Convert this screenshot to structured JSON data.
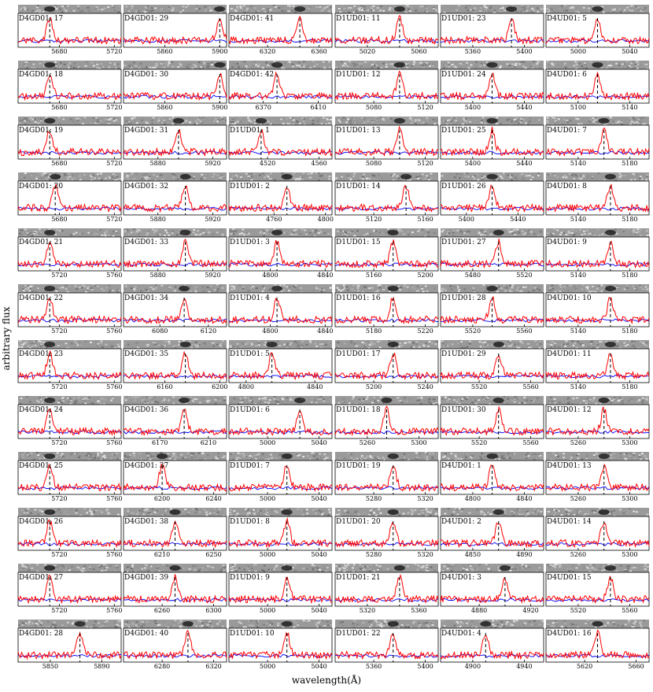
{
  "figure": {
    "ylabel": "arbitrary flux",
    "xlabel": "wavelength(Å)",
    "colors": {
      "spectrum": "#ff0000",
      "noise": "#0000ff",
      "marker": "#000000"
    }
  },
  "chart_data": {
    "type": "line",
    "columns": [
      [
        {
          "label": "D4GD01: 17",
          "ticks": [
            5680,
            5720
          ],
          "range": [
            5650,
            5725
          ],
          "center": 5673
        },
        {
          "label": "D4GD01: 18",
          "ticks": [
            5680,
            5720
          ],
          "range": [
            5650,
            5725
          ],
          "center": 5673
        },
        {
          "label": "D4GD01: 19",
          "ticks": [
            5680,
            5720
          ],
          "range": [
            5650,
            5725
          ],
          "center": 5673
        },
        {
          "label": "D4GD01: 20",
          "ticks": [
            5680,
            5720
          ],
          "range": [
            5650,
            5725
          ],
          "center": 5677
        },
        {
          "label": "D4GD01: 21",
          "ticks": [
            5720,
            5760
          ],
          "range": [
            5690,
            5765
          ],
          "center": 5713
        },
        {
          "label": "D4GD01: 22",
          "ticks": [
            5720,
            5760
          ],
          "range": [
            5690,
            5765
          ],
          "center": 5713
        },
        {
          "label": "D4GD01: 23",
          "ticks": [
            5720,
            5760
          ],
          "range": [
            5690,
            5765
          ],
          "center": 5713
        },
        {
          "label": "D4GD01: 24",
          "ticks": [
            5720,
            5760
          ],
          "range": [
            5690,
            5765
          ],
          "center": 5713
        },
        {
          "label": "D4GD01: 25",
          "ticks": [
            5720,
            5760
          ],
          "range": [
            5690,
            5765
          ],
          "center": 5713
        },
        {
          "label": "D4GD01: 26",
          "ticks": [
            5720,
            5760
          ],
          "range": [
            5690,
            5765
          ],
          "center": 5713
        },
        {
          "label": "D4GD01: 27",
          "ticks": [
            5720,
            5760
          ],
          "range": [
            5690,
            5765
          ],
          "center": 5713
        },
        {
          "label": "D4GD01: 28",
          "ticks": [
            5850,
            5890
          ],
          "range": [
            5825,
            5905
          ],
          "center": 5873
        }
      ],
      [
        {
          "label": "D4GD01: 29",
          "ticks": [
            5860,
            5900
          ],
          "range": [
            5830,
            5905
          ],
          "center": 5900
        },
        {
          "label": "D4GD01: 30",
          "ticks": [
            5860,
            5900
          ],
          "range": [
            5830,
            5905
          ],
          "center": 5900
        },
        {
          "label": "D4GD01: 31",
          "ticks": [
            5880,
            5920
          ],
          "range": [
            5855,
            5930
          ],
          "center": 5895
        },
        {
          "label": "D4GD01: 32",
          "ticks": [
            5880,
            5920
          ],
          "range": [
            5855,
            5930
          ],
          "center": 5900
        },
        {
          "label": "D4GD01: 33",
          "ticks": [
            5880,
            5920
          ],
          "range": [
            5855,
            5930
          ],
          "center": 5900
        },
        {
          "label": "D4GD01: 34",
          "ticks": [
            6080,
            6120
          ],
          "range": [
            6050,
            6135
          ],
          "center": 6100
        },
        {
          "label": "D4GD01: 35",
          "ticks": [
            6160,
            6200
          ],
          "range": [
            6130,
            6205
          ],
          "center": 6175
        },
        {
          "label": "D4GD01: 36",
          "ticks": [
            6170,
            6210
          ],
          "range": [
            6140,
            6225
          ],
          "center": 6190
        },
        {
          "label": "D4GD01: 37",
          "ticks": [
            6200,
            6240
          ],
          "range": [
            6170,
            6250
          ],
          "center": 6200
        },
        {
          "label": "D4GD01: 38",
          "ticks": [
            6210,
            6250
          ],
          "range": [
            6180,
            6260
          ],
          "center": 6220
        },
        {
          "label": "D4GD01: 39",
          "ticks": [
            6260,
            6300
          ],
          "range": [
            6230,
            6310
          ],
          "center": 6270
        },
        {
          "label": "D4GD01: 40",
          "ticks": [
            6280,
            6320
          ],
          "range": [
            6250,
            6330
          ],
          "center": 6300
        }
      ],
      [
        {
          "label": "D4GD01: 41",
          "ticks": [
            6320,
            6360
          ],
          "range": [
            6290,
            6370
          ],
          "center": 6345
        },
        {
          "label": "D4GD01: 42",
          "ticks": [
            6370,
            6410
          ],
          "range": [
            6345,
            6420
          ],
          "center": 6380
        },
        {
          "label": "D1UD01: 1",
          "ticks": [
            4520,
            4560
          ],
          "range": [
            4490,
            4570
          ],
          "center": 4515
        },
        {
          "label": "D1UD01: 2",
          "ticks": [
            4760,
            4800
          ],
          "range": [
            4725,
            4805
          ],
          "center": 4770
        },
        {
          "label": "D1UD01: 3",
          "ticks": [
            4800,
            4840
          ],
          "range": [
            4770,
            4845
          ],
          "center": 4805
        },
        {
          "label": "D1UD01: 4",
          "ticks": [
            4800,
            4840
          ],
          "range": [
            4770,
            4845
          ],
          "center": 4805
        },
        {
          "label": "D1UD01: 5",
          "ticks": [
            4800,
            4840
          ],
          "range": [
            4790,
            4850
          ],
          "center": 4815
        },
        {
          "label": "D1UD01: 6",
          "ticks": [
            5000,
            5040
          ],
          "range": [
            4970,
            5050
          ],
          "center": 5025
        },
        {
          "label": "D1UD01: 7",
          "ticks": [
            5000,
            5040
          ],
          "range": [
            4970,
            5050
          ],
          "center": 5015
        },
        {
          "label": "D1UD01: 8",
          "ticks": [
            5000,
            5040
          ],
          "range": [
            4970,
            5050
          ],
          "center": 5015
        },
        {
          "label": "D1UD01: 9",
          "ticks": [
            5000,
            5040
          ],
          "range": [
            4970,
            5050
          ],
          "center": 5015
        },
        {
          "label": "D1UD01: 10",
          "ticks": [
            5000,
            5040
          ],
          "range": [
            4970,
            5050
          ],
          "center": 5015
        }
      ],
      [
        {
          "label": "D1UD01: 11",
          "ticks": [
            5020,
            5060
          ],
          "range": [
            4995,
            5075
          ],
          "center": 5045
        },
        {
          "label": "D1UD01: 12",
          "ticks": [
            5080,
            5120
          ],
          "range": [
            5050,
            5130
          ],
          "center": 5100
        },
        {
          "label": "D1UD01: 13",
          "ticks": [
            5080,
            5120
          ],
          "range": [
            5050,
            5130
          ],
          "center": 5100
        },
        {
          "label": "D1UD01: 14",
          "ticks": [
            5120,
            5160
          ],
          "range": [
            5090,
            5170
          ],
          "center": 5145
        },
        {
          "label": "D1UD01: 15",
          "ticks": [
            5160,
            5200
          ],
          "range": [
            5130,
            5210
          ],
          "center": 5175
        },
        {
          "label": "D1UD01: 16",
          "ticks": [
            5180,
            5220
          ],
          "range": [
            5150,
            5230
          ],
          "center": 5195
        },
        {
          "label": "D1UD01: 17",
          "ticks": [
            5200,
            5240
          ],
          "range": [
            5170,
            5250
          ],
          "center": 5215
        },
        {
          "label": "D1UD01: 18",
          "ticks": [
            5260,
            5300
          ],
          "range": [
            5235,
            5315
          ],
          "center": 5275
        },
        {
          "label": "D1UD01: 19",
          "ticks": [
            5280,
            5320
          ],
          "range": [
            5250,
            5330
          ],
          "center": 5295
        },
        {
          "label": "D1UD01: 20",
          "ticks": [
            5280,
            5320
          ],
          "range": [
            5250,
            5330
          ],
          "center": 5295
        },
        {
          "label": "D1UD01: 21",
          "ticks": [
            5320,
            5360
          ],
          "range": [
            5295,
            5375
          ],
          "center": 5345
        },
        {
          "label": "D1UD01: 22",
          "ticks": [
            5360,
            5400
          ],
          "range": [
            5330,
            5410
          ],
          "center": 5375
        }
      ],
      [
        {
          "label": "D1UD01: 23",
          "ticks": [
            5360,
            5400
          ],
          "range": [
            5335,
            5415
          ],
          "center": 5390
        },
        {
          "label": "D1UD01: 24",
          "ticks": [
            5400,
            5440
          ],
          "range": [
            5375,
            5455
          ],
          "center": 5415
        },
        {
          "label": "D1UD01: 25",
          "ticks": [
            5400,
            5440
          ],
          "range": [
            5375,
            5455
          ],
          "center": 5415
        },
        {
          "label": "D1UD01: 26",
          "ticks": [
            5400,
            5440
          ],
          "range": [
            5380,
            5460
          ],
          "center": 5420
        },
        {
          "label": "D1UD01: 27",
          "ticks": [
            5480,
            5520
          ],
          "range": [
            5455,
            5535
          ],
          "center": 5500
        },
        {
          "label": "D1UD01: 28",
          "ticks": [
            5520,
            5560
          ],
          "range": [
            5495,
            5575
          ],
          "center": 5535
        },
        {
          "label": "D1UD01: 29",
          "ticks": [
            5520,
            5560
          ],
          "range": [
            5490,
            5570
          ],
          "center": 5535
        },
        {
          "label": "D1UD01: 30",
          "ticks": [
            5520,
            5560
          ],
          "range": [
            5490,
            5570
          ],
          "center": 5535
        },
        {
          "label": "D4UD01: 1",
          "ticks": [
            4800,
            4840
          ],
          "range": [
            4775,
            4855
          ],
          "center": 4815
        },
        {
          "label": "D4UD01: 2",
          "ticks": [
            4850,
            4890
          ],
          "range": [
            4825,
            4905
          ],
          "center": 4870
        },
        {
          "label": "D4UD01: 3",
          "ticks": [
            4880,
            4920
          ],
          "range": [
            4850,
            4930
          ],
          "center": 4900
        },
        {
          "label": "D4UD01: 4",
          "ticks": [
            4900,
            4940
          ],
          "range": [
            4875,
            4955
          ],
          "center": 4910
        }
      ],
      [
        {
          "label": "D4UD01: 5",
          "ticks": [
            5000,
            5040
          ],
          "range": [
            4975,
            5055
          ],
          "center": 5015
        },
        {
          "label": "D4UD01: 6",
          "ticks": [
            5100,
            5140
          ],
          "range": [
            5075,
            5155
          ],
          "center": 5115
        },
        {
          "label": "D4UD01: 7",
          "ticks": [
            5140,
            5180
          ],
          "range": [
            5115,
            5195
          ],
          "center": 5160
        },
        {
          "label": "D4UD01: 8",
          "ticks": [
            5140,
            5180
          ],
          "range": [
            5115,
            5195
          ],
          "center": 5165
        },
        {
          "label": "D4UD01: 9",
          "ticks": [
            5140,
            5180
          ],
          "range": [
            5115,
            5195
          ],
          "center": 5165
        },
        {
          "label": "D4UD01: 10",
          "ticks": [
            5140,
            5180
          ],
          "range": [
            5115,
            5195
          ],
          "center": 5165
        },
        {
          "label": "D4UD01: 11",
          "ticks": [
            5140,
            5180
          ],
          "range": [
            5115,
            5195
          ],
          "center": 5165
        },
        {
          "label": "D4UD01: 12",
          "ticks": [
            5260,
            5300
          ],
          "range": [
            5235,
            5315
          ],
          "center": 5280
        },
        {
          "label": "D4UD01: 13",
          "ticks": [
            5260,
            5300
          ],
          "range": [
            5235,
            5315
          ],
          "center": 5280
        },
        {
          "label": "D4UD01: 14",
          "ticks": [
            5260,
            5300
          ],
          "range": [
            5235,
            5315
          ],
          "center": 5280
        },
        {
          "label": "D4UD01: 15",
          "ticks": [
            5520,
            5560
          ],
          "range": [
            5495,
            5575
          ],
          "center": 5545
        },
        {
          "label": "D4UD01: 16",
          "ticks": [
            5620,
            5660
          ],
          "range": [
            5590,
            5670
          ],
          "center": 5630
        }
      ]
    ]
  }
}
